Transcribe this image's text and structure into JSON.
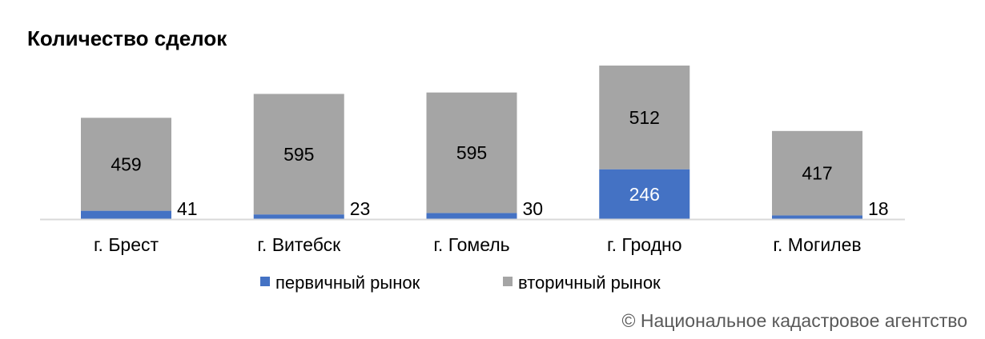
{
  "chart_data": {
    "type": "bar",
    "stacked": true,
    "title": "Количество сделок",
    "categories": [
      "г. Брест",
      "г. Витебск",
      "г. Гомель",
      "г. Гродно",
      "г. Могилев"
    ],
    "series": [
      {
        "name": "первичный рынок",
        "color": "#4472C4",
        "values": [
          41,
          23,
          30,
          246,
          18
        ]
      },
      {
        "name": "вторичный рынок",
        "color": "#A5A5A5",
        "values": [
          459,
          595,
          595,
          512,
          417
        ]
      }
    ],
    "ylim": [
      0,
      760
    ],
    "grid": false,
    "legend": "bottom"
  },
  "footer": {
    "copyright": "© Национальное кадастровое агентство"
  }
}
